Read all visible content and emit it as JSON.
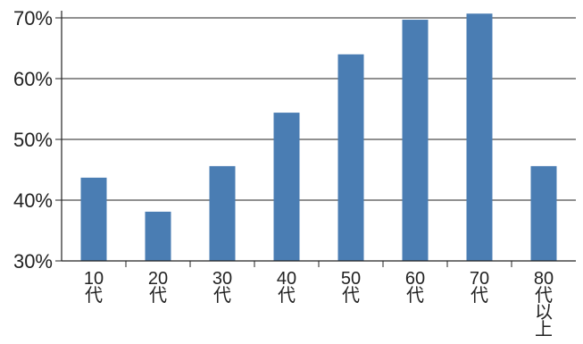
{
  "chart_data": {
    "type": "bar",
    "categories": [
      "10\n代",
      "20\n代",
      "30\n代",
      "40\n代",
      "50\n代",
      "60\n代",
      "70\n代",
      "80\n代\n以\n上"
    ],
    "values": [
      43.7,
      38.1,
      45.6,
      54.4,
      64.0,
      69.7,
      70.7,
      45.6
    ],
    "y_ticks": [
      "30%",
      "40%",
      "50%",
      "60%",
      "70%"
    ],
    "ylim": [
      30,
      71
    ],
    "grid": true,
    "colors": {
      "bar": "#4a7db3",
      "grid": "#222222"
    }
  }
}
